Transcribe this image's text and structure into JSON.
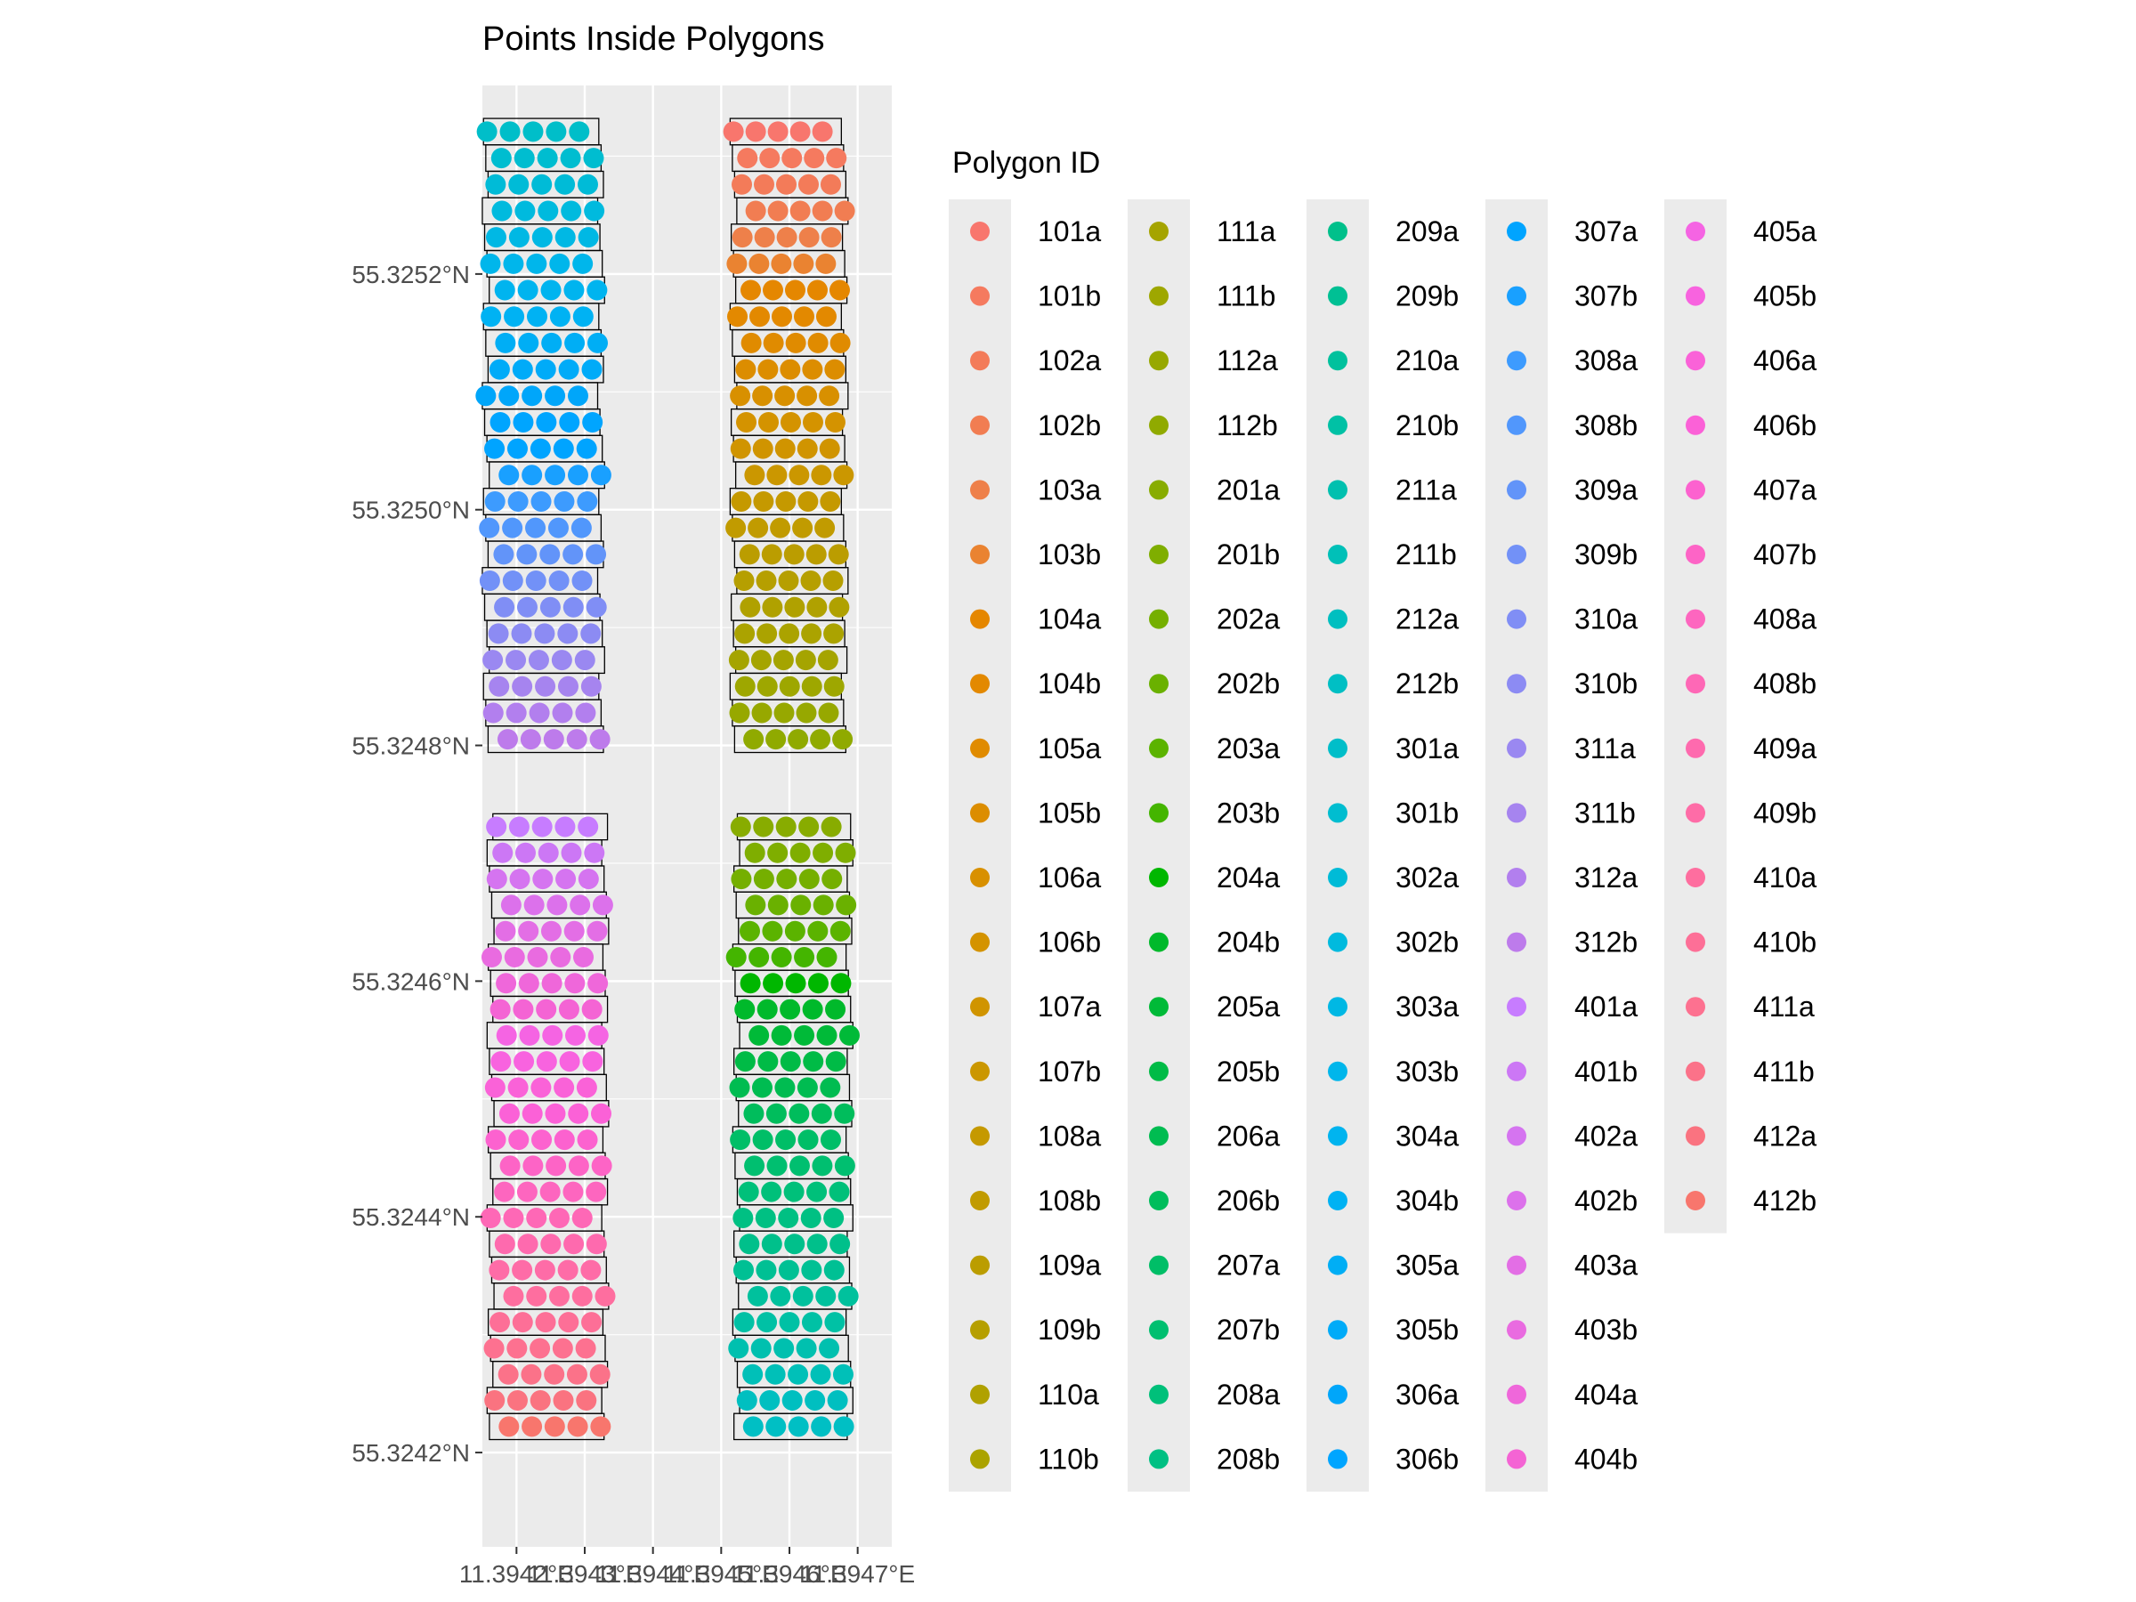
{
  "chart_data": {
    "type": "scatter",
    "title": "Points Inside Polygons",
    "xlabel": "",
    "ylabel": "",
    "xlim": [
      11.39415,
      11.39475
    ],
    "ylim": [
      55.32412,
      55.32536
    ],
    "x_ticks": [
      11.3942,
      11.3943,
      11.3944,
      11.3945,
      11.3946,
      11.3947
    ],
    "x_tick_labels": [
      "11.3942°E",
      "11.3943°E",
      "11.3944°E",
      "11.3945°E",
      "11.3946°E",
      "11.3947°E"
    ],
    "y_ticks": [
      55.3242,
      55.3244,
      55.3246,
      55.3248,
      55.325,
      55.3252
    ],
    "y_tick_labels": [
      "55.3242°N",
      "55.3244°N",
      "55.3246°N",
      "55.3248°N",
      "55.3250°N",
      "55.3252°N"
    ],
    "grid": true,
    "legend": {
      "title": "Polygon ID",
      "placement": "right",
      "columns": 6,
      "rows": 20,
      "items": [
        {
          "label": "101a",
          "color": "#F8766D"
        },
        {
          "label": "101b",
          "color": "#F57A5F"
        },
        {
          "label": "102a",
          "color": "#F37B59"
        },
        {
          "label": "102b",
          "color": "#F17D52"
        },
        {
          "label": "103a",
          "color": "#EE804A"
        },
        {
          "label": "103b",
          "color": "#EA8331"
        },
        {
          "label": "104a",
          "color": "#E58700"
        },
        {
          "label": "104b",
          "color": "#E38900"
        },
        {
          "label": "105a",
          "color": "#E08B00"
        },
        {
          "label": "105b",
          "color": "#DC8D00"
        },
        {
          "label": "106a",
          "color": "#D89000"
        },
        {
          "label": "106b",
          "color": "#D49300"
        },
        {
          "label": "107a",
          "color": "#D09400"
        },
        {
          "label": "107b",
          "color": "#CB9700"
        },
        {
          "label": "108a",
          "color": "#C59900"
        },
        {
          "label": "108b",
          "color": "#C19B00"
        },
        {
          "label": "109a",
          "color": "#BB9D00"
        },
        {
          "label": "109b",
          "color": "#B69F00"
        },
        {
          "label": "110a",
          "color": "#B0A100"
        },
        {
          "label": "110b",
          "color": "#ABA300"
        },
        {
          "label": "111a",
          "color": "#A5A400"
        },
        {
          "label": "111b",
          "color": "#9EA700"
        },
        {
          "label": "112a",
          "color": "#97A800"
        },
        {
          "label": "112b",
          "color": "#90AA00"
        },
        {
          "label": "201a",
          "color": "#88AC00"
        },
        {
          "label": "201b",
          "color": "#7FAE00"
        },
        {
          "label": "202a",
          "color": "#75AF00"
        },
        {
          "label": "202b",
          "color": "#6AB100"
        },
        {
          "label": "203a",
          "color": "#5BB300"
        },
        {
          "label": "203b",
          "color": "#44B500"
        },
        {
          "label": "204a",
          "color": "#00B700"
        },
        {
          "label": "204b",
          "color": "#00B92B"
        },
        {
          "label": "205a",
          "color": "#00BA38"
        },
        {
          "label": "205b",
          "color": "#00BB46"
        },
        {
          "label": "206a",
          "color": "#00BC51"
        },
        {
          "label": "206b",
          "color": "#00BD5C"
        },
        {
          "label": "207a",
          "color": "#00BE67"
        },
        {
          "label": "207b",
          "color": "#00BF70"
        },
        {
          "label": "208a",
          "color": "#00C07A"
        },
        {
          "label": "208b",
          "color": "#00C083"
        },
        {
          "label": "209a",
          "color": "#00C08B"
        },
        {
          "label": "209b",
          "color": "#00C094"
        },
        {
          "label": "210a",
          "color": "#00C19D"
        },
        {
          "label": "210b",
          "color": "#00C1A5"
        },
        {
          "label": "211a",
          "color": "#00C0AF"
        },
        {
          "label": "211b",
          "color": "#00C0B8"
        },
        {
          "label": "212a",
          "color": "#00BFC0"
        },
        {
          "label": "212b",
          "color": "#00BFC4"
        },
        {
          "label": "301a",
          "color": "#00BEC9"
        },
        {
          "label": "301b",
          "color": "#00BDD0"
        },
        {
          "label": "302a",
          "color": "#00BBD7"
        },
        {
          "label": "302b",
          "color": "#00BADE"
        },
        {
          "label": "303a",
          "color": "#00B8E4"
        },
        {
          "label": "303b",
          "color": "#00B6EB"
        },
        {
          "label": "304a",
          "color": "#00B4EF"
        },
        {
          "label": "304b",
          "color": "#00B2F3"
        },
        {
          "label": "305a",
          "color": "#00AEF5"
        },
        {
          "label": "305b",
          "color": "#00ABF8"
        },
        {
          "label": "306a",
          "color": "#00A6FA"
        },
        {
          "label": "306b",
          "color": "#00A5FF"
        },
        {
          "label": "307a",
          "color": "#00A4FF"
        },
        {
          "label": "307b",
          "color": "#19A0FF"
        },
        {
          "label": "308a",
          "color": "#3D9BFE"
        },
        {
          "label": "308b",
          "color": "#5197FC"
        },
        {
          "label": "309a",
          "color": "#6294F9"
        },
        {
          "label": "309b",
          "color": "#7291F7"
        },
        {
          "label": "310a",
          "color": "#808EF5"
        },
        {
          "label": "310b",
          "color": "#8C8BF3"
        },
        {
          "label": "311a",
          "color": "#9A88F1"
        },
        {
          "label": "311b",
          "color": "#A684EF"
        },
        {
          "label": "312a",
          "color": "#B27FEE"
        },
        {
          "label": "312b",
          "color": "#BD7BEB"
        },
        {
          "label": "401a",
          "color": "#C77CFF"
        },
        {
          "label": "401b",
          "color": "#CC77F5"
        },
        {
          "label": "402a",
          "color": "#D574F0"
        },
        {
          "label": "402b",
          "color": "#DC71EB"
        },
        {
          "label": "403a",
          "color": "#E36EE5"
        },
        {
          "label": "403b",
          "color": "#E96BE0"
        },
        {
          "label": "404a",
          "color": "#EF67DA"
        },
        {
          "label": "404b",
          "color": "#F464D4"
        },
        {
          "label": "405a",
          "color": "#F564E3"
        },
        {
          "label": "405b",
          "color": "#F863DF"
        },
        {
          "label": "406a",
          "color": "#FA62D8"
        },
        {
          "label": "406b",
          "color": "#FB61D7"
        },
        {
          "label": "407a",
          "color": "#FC62CF"
        },
        {
          "label": "407b",
          "color": "#FD64C6"
        },
        {
          "label": "408a",
          "color": "#FD66BF"
        },
        {
          "label": "408b",
          "color": "#FE68B6"
        },
        {
          "label": "409a",
          "color": "#FE6AAE"
        },
        {
          "label": "409b",
          "color": "#FE6CA7"
        },
        {
          "label": "410a",
          "color": "#FE6E9F"
        },
        {
          "label": "410b",
          "color": "#FD6F97"
        },
        {
          "label": "411a",
          "color": "#FD7190"
        },
        {
          "label": "411b",
          "color": "#FB7289"
        },
        {
          "label": "412a",
          "color": "#FA7380"
        },
        {
          "label": "412b",
          "color": "#F8766D"
        }
      ]
    },
    "polygon_strip_groups": [
      {
        "name": "101a-112b",
        "x_range": [
          11.394518,
          11.394681
        ],
        "y_range": [
          55.324794,
          55.325332
        ],
        "ids": [
          "101a",
          "101b",
          "102a",
          "102b",
          "103a",
          "103b",
          "104a",
          "104b",
          "105a",
          "105b",
          "106a",
          "106b",
          "107a",
          "107b",
          "108a",
          "108b",
          "109a",
          "109b",
          "110a",
          "110b",
          "111a",
          "111b",
          "112a",
          "112b"
        ]
      },
      {
        "name": "201a-212b",
        "x_range": [
          11.394522,
          11.394688
        ],
        "y_range": [
          55.324211,
          55.324742
        ],
        "ids": [
          "201a",
          "201b",
          "202a",
          "202b",
          "203a",
          "203b",
          "204a",
          "204b",
          "205a",
          "205b",
          "206a",
          "206b",
          "207a",
          "207b",
          "208a",
          "208b",
          "209a",
          "209b",
          "210a",
          "210b",
          "211a",
          "211b",
          "212a",
          "212b"
        ]
      },
      {
        "name": "301a-312b",
        "x_range": [
          11.394155,
          11.394324
        ],
        "y_range": [
          55.324794,
          55.325332
        ],
        "ids": [
          "301a",
          "301b",
          "302a",
          "302b",
          "303a",
          "303b",
          "304a",
          "304b",
          "305a",
          "305b",
          "306a",
          "306b",
          "307a",
          "307b",
          "308a",
          "308b",
          "309a",
          "309b",
          "310a",
          "310b",
          "311a",
          "311b",
          "312a",
          "312b"
        ]
      },
      {
        "name": "401a-412b",
        "x_range": [
          11.394162,
          11.39433
        ],
        "y_range": [
          55.324211,
          55.324742
        ],
        "ids": [
          "401a",
          "401b",
          "402a",
          "402b",
          "403a",
          "403b",
          "404a",
          "404b",
          "405a",
          "405b",
          "406a",
          "406b",
          "407a",
          "407b",
          "408a",
          "408b",
          "409a",
          "409b",
          "410a",
          "410b",
          "411a",
          "411b",
          "412a",
          "412b"
        ]
      }
    ],
    "points_per_polygon": 5
  }
}
